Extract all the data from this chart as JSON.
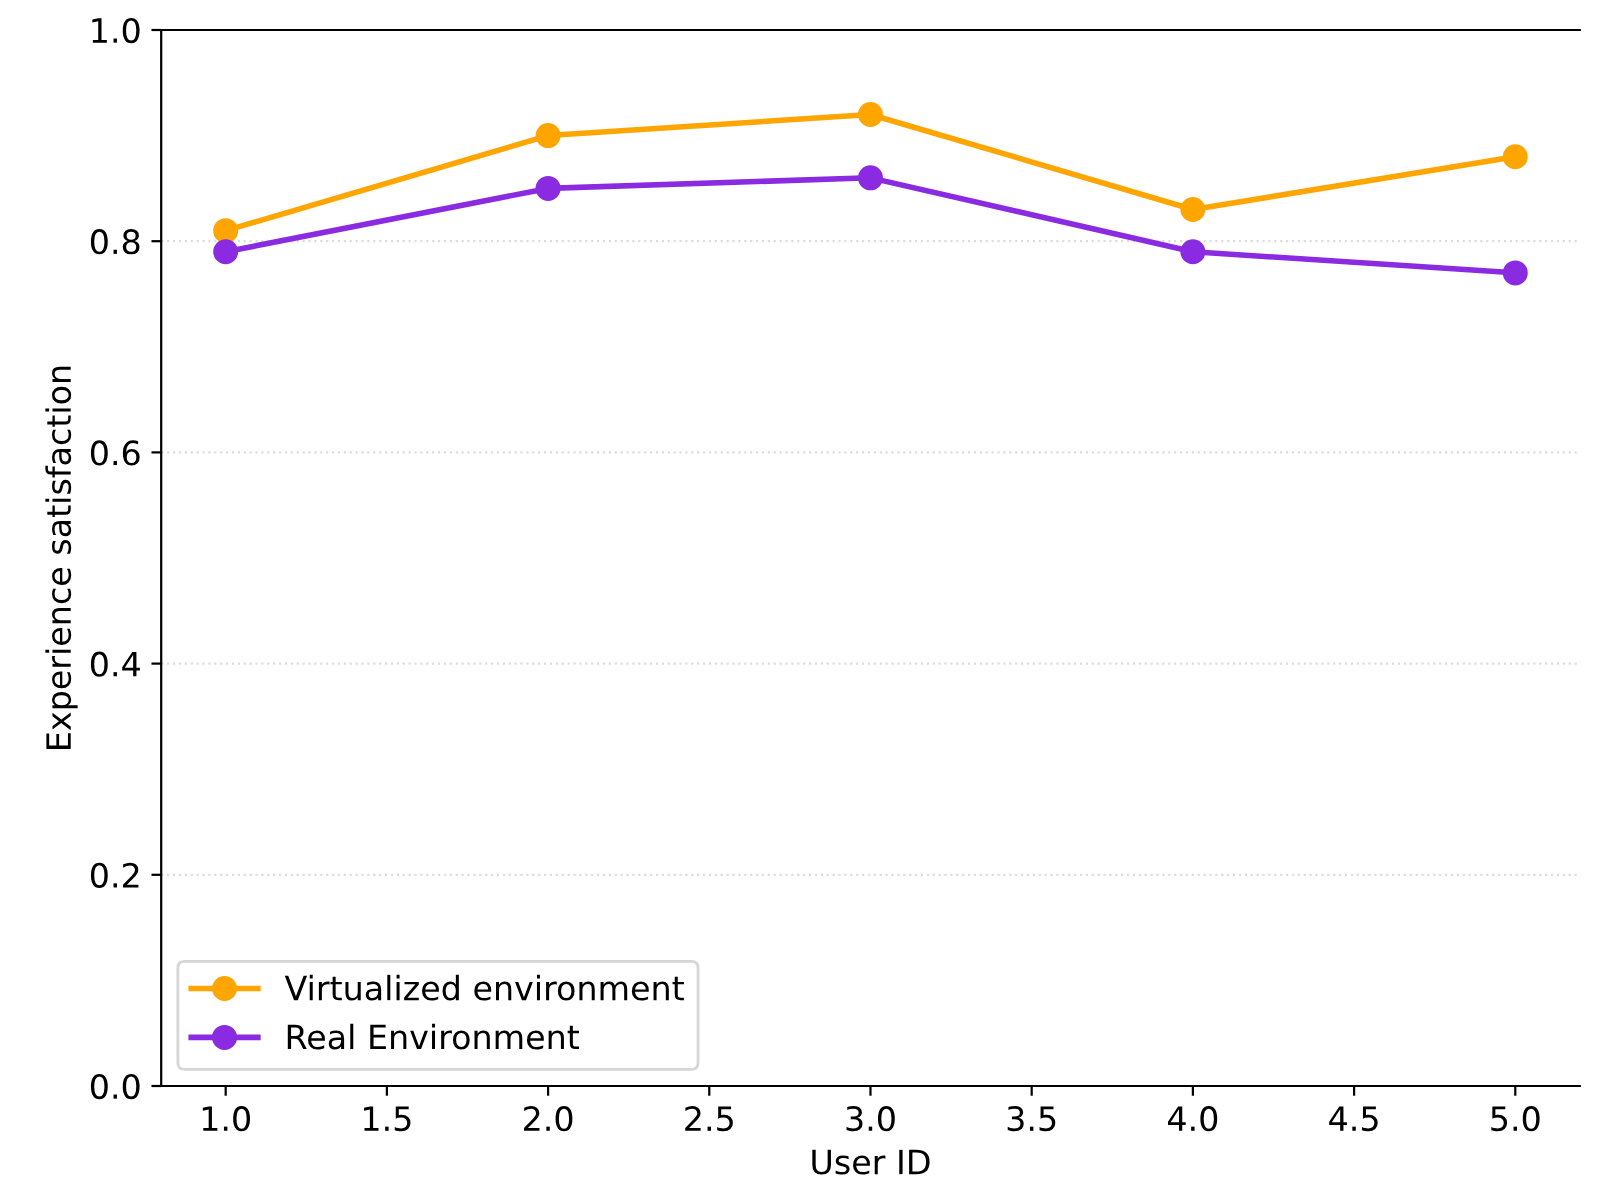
{
  "chart_data": {
    "type": "line",
    "xlabel": "User ID",
    "ylabel": "Experience satisfaction",
    "x": [
      1,
      2,
      3,
      4,
      5
    ],
    "series": [
      {
        "name": "Virtualized environment",
        "color": "#ffa500",
        "values": [
          0.81,
          0.9,
          0.92,
          0.83,
          0.88
        ]
      },
      {
        "name": "Real Environment",
        "color": "#8a2be2",
        "values": [
          0.79,
          0.85,
          0.86,
          0.79,
          0.77
        ]
      }
    ],
    "xlim": [
      0.8,
      5.2
    ],
    "xticks": [
      {
        "value": 1,
        "label": "1.0"
      },
      {
        "value": 1.5,
        "label": "1.5"
      },
      {
        "value": 2,
        "label": "2.0"
      },
      {
        "value": 2.5,
        "label": "2.5"
      },
      {
        "value": 3,
        "label": "3.0"
      },
      {
        "value": 3.5,
        "label": "3.5"
      },
      {
        "value": 4,
        "label": "4.0"
      },
      {
        "value": 4.5,
        "label": "4.5"
      },
      {
        "value": 5,
        "label": "5.0"
      }
    ],
    "ylim": [
      0,
      1
    ],
    "yticks": [
      {
        "value": 0,
        "label": "0.0"
      },
      {
        "value": 0.2,
        "label": "0.2"
      },
      {
        "value": 0.4,
        "label": "0.4"
      },
      {
        "value": 0.6,
        "label": "0.6"
      },
      {
        "value": 0.8,
        "label": "0.8"
      },
      {
        "value": 1,
        "label": "1.0"
      }
    ],
    "grid": "y",
    "legend": "bottom left",
    "marker": "circle",
    "line_style": "solid"
  }
}
